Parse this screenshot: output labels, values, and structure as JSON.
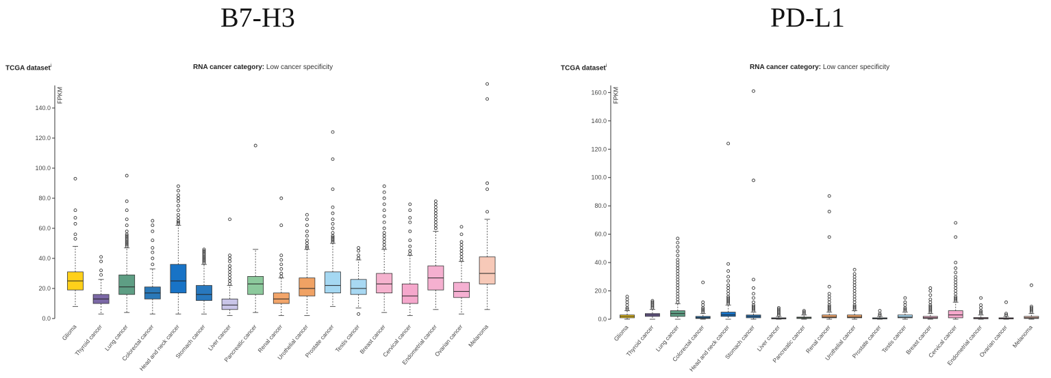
{
  "panels": [
    {
      "title": "B7-H3",
      "dataset_label": "TCGA dataset",
      "dataset_sup": "i",
      "category_key": "RNA cancer category:",
      "category_value": "Low cancer specificity"
    },
    {
      "title": "PD-L1",
      "dataset_label": "TCGA dataset",
      "dataset_sup": "i",
      "category_key": "RNA cancer category:",
      "category_value": "Low cancer specificity"
    }
  ],
  "chart_data": [
    {
      "type": "box",
      "title": "B7-H3",
      "ylabel": "FPKM",
      "ylim": [
        0,
        155
      ],
      "yticks": [
        0,
        20,
        40,
        60,
        80,
        100,
        120,
        140
      ],
      "ytick_labels": [
        "0.0",
        "20.0",
        "40.0",
        "60.0",
        "80.0",
        "100.0",
        "120.0",
        "140.0"
      ],
      "categories": [
        "Glioma",
        "Thyroid cancer",
        "Lung cancer",
        "Colorectal cancer",
        "Head and neck cancer",
        "Stomach cancer",
        "Liver cancer",
        "Pancreatic cancer",
        "Renal cancer",
        "Urothelial cancer",
        "Prostate cancer",
        "Testis cancer",
        "Breast cancer",
        "Cervical cancer",
        "Endometrial cancer",
        "Ovarian cancer",
        "Melanoma"
      ],
      "colors": [
        "#FFD01A",
        "#7B68A6",
        "#5E9E84",
        "#2A78B8",
        "#1873C6",
        "#2878BE",
        "#C9C5E8",
        "#8CC99C",
        "#F2A56A",
        "#F0A264",
        "#A5D8F2",
        "#A8D8F2",
        "#F5B2CE",
        "#F5A8CC",
        "#F5B0D0",
        "#F5B0D2",
        "#F7C9B8"
      ],
      "boxes": [
        {
          "whislo": 8,
          "q1": 19,
          "med": 25,
          "q3": 31,
          "whishi": 48,
          "fliers": [
            53,
            56,
            63,
            67,
            72,
            93
          ]
        },
        {
          "whislo": 3,
          "q1": 10,
          "med": 13,
          "q3": 16,
          "whishi": 26,
          "fliers": [
            29,
            32,
            38,
            41
          ]
        },
        {
          "whislo": 4,
          "q1": 16,
          "med": 21,
          "q3": 29,
          "whishi": 47,
          "fliers": [
            48,
            49,
            50,
            51,
            52,
            53,
            54,
            55,
            56,
            58,
            62,
            66,
            72,
            78,
            95
          ]
        },
        {
          "whislo": 3,
          "q1": 13,
          "med": 17,
          "q3": 21,
          "whishi": 33,
          "fliers": [
            36,
            40,
            44,
            47,
            52,
            58,
            62,
            65
          ]
        },
        {
          "whislo": 3,
          "q1": 17,
          "med": 25,
          "q3": 36,
          "whishi": 62,
          "fliers": [
            63,
            64,
            65,
            67,
            69,
            72,
            75,
            78,
            80,
            82,
            85,
            88
          ]
        },
        {
          "whislo": 3,
          "q1": 12,
          "med": 16,
          "q3": 22,
          "whishi": 36,
          "fliers": [
            37,
            38,
            39,
            40,
            41,
            42,
            43,
            44,
            45,
            46
          ]
        },
        {
          "whislo": 2,
          "q1": 6,
          "med": 9,
          "q3": 13,
          "whishi": 22,
          "fliers": [
            23,
            25,
            27,
            29,
            31,
            33,
            35,
            38,
            40,
            42,
            66
          ]
        },
        {
          "whislo": 4,
          "q1": 16,
          "med": 23,
          "q3": 28,
          "whishi": 46,
          "fliers": [
            115
          ]
        },
        {
          "whislo": 2,
          "q1": 10,
          "med": 13,
          "q3": 17,
          "whishi": 27,
          "fliers": [
            28,
            30,
            33,
            36,
            39,
            42,
            62,
            80
          ]
        },
        {
          "whislo": 2,
          "q1": 15,
          "med": 20,
          "q3": 27,
          "whishi": 46,
          "fliers": [
            47,
            48,
            50,
            52,
            55,
            58,
            62,
            66,
            69
          ]
        },
        {
          "whislo": 8,
          "q1": 17,
          "med": 22,
          "q3": 31,
          "whishi": 50,
          "fliers": [
            51,
            52,
            53,
            54,
            55,
            57,
            60,
            63,
            66,
            70,
            74,
            86,
            106,
            124
          ]
        },
        {
          "whislo": 7,
          "q1": 16,
          "med": 20,
          "q3": 26,
          "whishi": 39,
          "fliers": [
            3,
            40,
            42,
            45,
            47
          ]
        },
        {
          "whislo": 4,
          "q1": 17,
          "med": 23,
          "q3": 30,
          "whishi": 46,
          "fliers": [
            47,
            49,
            51,
            53,
            55,
            57,
            60,
            64,
            68,
            72,
            76,
            80,
            84,
            88
          ]
        },
        {
          "whislo": 2,
          "q1": 10,
          "med": 15,
          "q3": 23,
          "whishi": 42,
          "fliers": [
            43,
            45,
            48,
            52,
            58,
            64,
            67,
            72,
            76
          ]
        },
        {
          "whislo": 6,
          "q1": 19,
          "med": 27,
          "q3": 35,
          "whishi": 58,
          "fliers": [
            60,
            62,
            64,
            66,
            68,
            70,
            72,
            74,
            76,
            78
          ]
        },
        {
          "whislo": 3,
          "q1": 14,
          "med": 18,
          "q3": 24,
          "whishi": 38,
          "fliers": [
            39,
            41,
            43,
            45,
            47,
            49,
            51,
            56,
            61
          ]
        },
        {
          "whislo": 6,
          "q1": 23,
          "med": 30,
          "q3": 41,
          "whishi": 66,
          "fliers": [
            71,
            86,
            90,
            146,
            156
          ]
        }
      ]
    },
    {
      "type": "box",
      "title": "PD-L1",
      "ylabel": "FPKM",
      "ylim": [
        0,
        165
      ],
      "yticks": [
        0,
        20,
        40,
        60,
        80,
        100,
        120,
        140,
        160
      ],
      "ytick_labels": [
        "0.0",
        "20.0",
        "40.0",
        "60.0",
        "80.0",
        "100.0",
        "120.0",
        "140.0",
        "160.0"
      ],
      "categories": [
        "Glioma",
        "Thyroid cancer",
        "Lung cancer",
        "Colorectal cancer",
        "Head and neck cancer",
        "Stomach cancer",
        "Liver cancer",
        "Pancreatic cancer",
        "Renal cancer",
        "Urothelial cancer",
        "Prostate cancer",
        "Testis cancer",
        "Breast cancer",
        "Cervical cancer",
        "Endometrial cancer",
        "Ovarian cancer",
        "Melanoma"
      ],
      "colors": [
        "#FFD01A",
        "#7B68A6",
        "#5E9E84",
        "#2A78B8",
        "#1873C6",
        "#2878BE",
        "#C9C5E8",
        "#8CC99C",
        "#F2A56A",
        "#F0A264",
        "#A5D8F2",
        "#A8D8F2",
        "#F5B2CE",
        "#F5A8CC",
        "#F5B0D0",
        "#F5B0D2",
        "#F7C9B8"
      ],
      "boxes": [
        {
          "whislo": 0,
          "q1": 1,
          "med": 2,
          "q3": 3,
          "whishi": 6,
          "fliers": [
            7,
            8,
            10,
            12,
            14,
            16
          ]
        },
        {
          "whislo": 0,
          "q1": 2,
          "med": 3,
          "q3": 4,
          "whishi": 7,
          "fliers": [
            8,
            9,
            10,
            11,
            12,
            13
          ]
        },
        {
          "whislo": 0,
          "q1": 2,
          "med": 4,
          "q3": 6,
          "whishi": 11,
          "fliers": [
            12,
            14,
            16,
            18,
            20,
            22,
            24,
            26,
            28,
            30,
            32,
            34,
            36,
            38,
            40,
            42,
            45,
            48,
            51,
            54,
            57
          ]
        },
        {
          "whislo": 0,
          "q1": 0.5,
          "med": 1,
          "q3": 2,
          "whishi": 4,
          "fliers": [
            5,
            6,
            7,
            8,
            10,
            12,
            26
          ]
        },
        {
          "whislo": 0,
          "q1": 2,
          "med": 3,
          "q3": 5,
          "whishi": 10,
          "fliers": [
            11,
            12,
            13,
            14,
            15,
            16,
            18,
            20,
            22,
            24,
            27,
            30,
            34,
            39,
            124
          ]
        },
        {
          "whislo": 0,
          "q1": 1,
          "med": 2,
          "q3": 3,
          "whishi": 5,
          "fliers": [
            6,
            7,
            8,
            9,
            10,
            12,
            15,
            18,
            22,
            28,
            98,
            161
          ]
        },
        {
          "whislo": 0,
          "q1": 0.2,
          "med": 0.5,
          "q3": 1,
          "whishi": 2,
          "fliers": [
            3,
            4,
            5,
            6,
            7,
            8
          ]
        },
        {
          "whislo": 0,
          "q1": 0.5,
          "med": 1,
          "q3": 1.5,
          "whishi": 3,
          "fliers": [
            4,
            5,
            6
          ]
        },
        {
          "whislo": 0,
          "q1": 1,
          "med": 1.5,
          "q3": 3,
          "whishi": 5,
          "fliers": [
            6,
            7,
            8,
            9,
            10,
            12,
            14,
            16,
            18,
            23,
            58,
            76,
            87
          ]
        },
        {
          "whislo": 0,
          "q1": 1,
          "med": 1.5,
          "q3": 3,
          "whishi": 6,
          "fliers": [
            7,
            8,
            9,
            10,
            12,
            14,
            16,
            18,
            20,
            22,
            24,
            26,
            28,
            30,
            32,
            35
          ]
        },
        {
          "whislo": 0,
          "q1": 0.2,
          "med": 0.5,
          "q3": 1,
          "whishi": 2,
          "fliers": [
            3,
            4,
            6
          ]
        },
        {
          "whislo": 0,
          "q1": 1,
          "med": 1.5,
          "q3": 3,
          "whishi": 5,
          "fliers": [
            6,
            7,
            8,
            10,
            12,
            15
          ]
        },
        {
          "whislo": 0,
          "q1": 0.5,
          "med": 1,
          "q3": 2,
          "whishi": 4,
          "fliers": [
            5,
            6,
            7,
            8,
            9,
            10,
            12,
            14,
            17,
            20,
            22
          ]
        },
        {
          "whislo": 0,
          "q1": 1,
          "med": 3,
          "q3": 6,
          "whishi": 12,
          "fliers": [
            13,
            14,
            15,
            16,
            18,
            20,
            22,
            24,
            26,
            28,
            30,
            33,
            36,
            40,
            58,
            68
          ]
        },
        {
          "whislo": 0,
          "q1": 0.3,
          "med": 0.6,
          "q3": 1.2,
          "whishi": 3,
          "fliers": [
            4,
            5,
            6,
            8,
            10,
            15
          ]
        },
        {
          "whislo": 0,
          "q1": 0.2,
          "med": 0.5,
          "q3": 1,
          "whishi": 2,
          "fliers": [
            3,
            4,
            12
          ]
        },
        {
          "whislo": 0,
          "q1": 0.5,
          "med": 1,
          "q3": 2,
          "whishi": 4,
          "fliers": [
            5,
            6,
            7,
            8,
            9,
            24
          ]
        }
      ]
    }
  ]
}
